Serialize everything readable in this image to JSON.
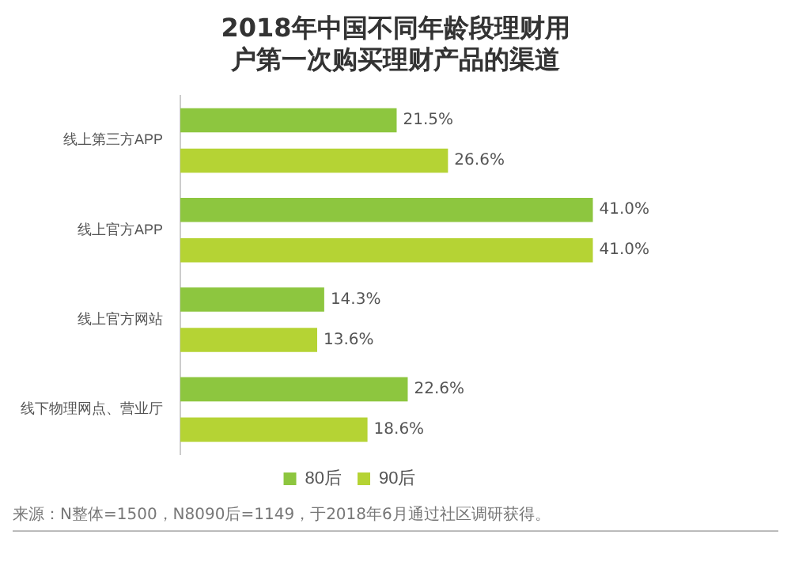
{
  "chart_data": {
    "type": "bar",
    "orientation": "horizontal",
    "title": "2018年中国不同年龄段理财用户第一次购买理财产品的渠道",
    "categories": [
      "线上第三方APP",
      "线上官方APP",
      "线上官方网站",
      "线下物理网点、营业厅"
    ],
    "series": [
      {
        "name": "80后",
        "color": "#8dc63f",
        "values": [
          21.5,
          41.0,
          14.3,
          22.6
        ],
        "value_labels": [
          "21.5%",
          "41.0%",
          "14.3%",
          "22.6%"
        ]
      },
      {
        "name": "90后",
        "color": "#b5d334",
        "values": [
          26.6,
          41.0,
          13.6,
          18.6
        ],
        "value_labels": [
          "26.6%",
          "41.0%",
          "13.6%",
          "18.6%"
        ]
      }
    ],
    "legend": "bottom",
    "annotations": [
      "来源：N整体=1500，N8090后=1149，于2018年6月通过社区调研获得。"
    ]
  }
}
